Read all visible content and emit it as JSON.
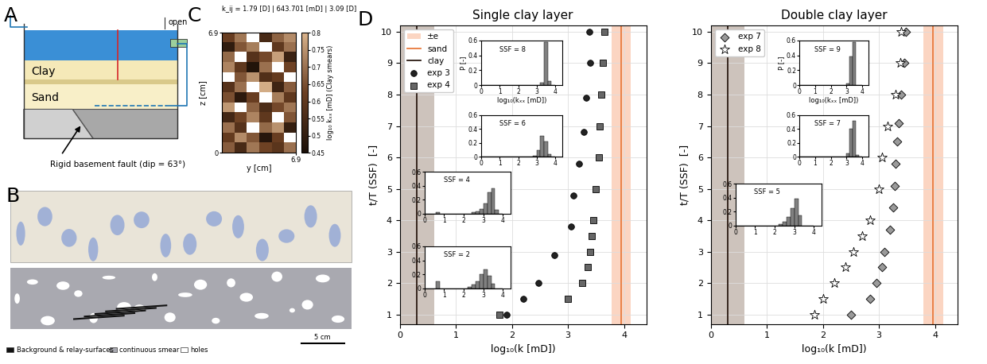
{
  "panel_labels": [
    "A",
    "B",
    "C",
    "D"
  ],
  "diagram_A": {
    "clay": "Clay",
    "sand": "Sand",
    "valve": "open",
    "fault": "Rigid basement fault (dip = 63°)"
  },
  "image_B": {
    "legend": [
      {
        "name": "Background & relay-surfaces",
        "color": "#111111"
      },
      {
        "name": "continuous smear",
        "color": "#a9a9b0"
      },
      {
        "name": "holes",
        "color": "#ffffff"
      }
    ],
    "scale_bar": "5 cm"
  },
  "chart_data": [
    {
      "type": "heatmap",
      "title": "k_ij = 1.79 [D] | 643.701 [mD] | 3.09 [D]",
      "xlabel": "y [cm]",
      "ylabel": "z [cm]",
      "xlim": [
        0,
        6.9
      ],
      "ylim": [
        0,
        6.9
      ],
      "xticks": [
        6.9
      ],
      "yticks": [
        0,
        6.9
      ],
      "cells": [
        [
          0.62,
          0.71,
          null,
          0.55,
          0.68,
          0.74
        ],
        [
          0.5,
          0.66,
          0.72,
          null,
          0.6,
          0.7
        ],
        [
          0.69,
          null,
          0.58,
          0.64,
          0.77,
          0.52
        ],
        [
          0.73,
          0.6,
          0.47,
          0.7,
          null,
          0.63
        ],
        [
          null,
          0.66,
          0.75,
          0.57,
          0.61,
          null
        ],
        [
          0.58,
          0.7,
          null,
          0.79,
          0.53,
          0.67
        ],
        [
          0.65,
          0.49,
          0.62,
          null,
          0.72,
          0.6
        ],
        [
          0.76,
          null,
          0.68,
          0.56,
          0.64,
          0.71
        ],
        [
          0.54,
          0.63,
          0.73,
          0.6,
          null,
          0.66
        ],
        [
          0.7,
          0.58,
          null,
          0.69,
          0.75,
          0.51
        ],
        [
          0.61,
          0.74,
          0.66,
          0.48,
          0.62,
          null
        ],
        [
          0.67,
          0.55,
          0.71,
          0.63,
          0.59,
          0.7
        ]
      ],
      "colorbar": {
        "label": "log₁₀ kₓₓ [mD] (Clay smears)",
        "range": [
          0.45,
          0.8
        ],
        "ticks": [
          0.45,
          0.5,
          0.55,
          0.6,
          0.65,
          0.7,
          0.75,
          0.8
        ]
      }
    },
    {
      "type": "scatter",
      "title": "Single clay layer",
      "xlabel": "log₁₀(k [mD])",
      "ylabel": "t/T (SSF)  [-]",
      "xlim": [
        0,
        4.4
      ],
      "xticks": [
        0,
        1,
        2,
        3,
        4
      ],
      "ylim": [
        0.7,
        10.2
      ],
      "yticks": [
        1,
        2,
        3,
        4,
        5,
        6,
        7,
        8,
        9,
        10
      ],
      "grid": true,
      "legend": "upper left",
      "bands": [
        {
          "name": "±e",
          "color": "#fbd5c2",
          "range": [
            3.78,
            4.12
          ]
        },
        {
          "color": "#cdc3bc",
          "range": [
            0,
            0.62
          ]
        }
      ],
      "lines": [
        {
          "name": "sand",
          "color": "#e87a3c",
          "x": 3.95
        },
        {
          "name": "clay",
          "color": "#2b1a12",
          "x": 0.3
        }
      ],
      "series": [
        {
          "name": "exp 3",
          "color": "#222222",
          "marker": "circle",
          "x": [
            1.9,
            2.2,
            2.48,
            2.75,
            3.05,
            3.1,
            3.2,
            3.28,
            3.33,
            3.4,
            3.38
          ],
          "y": [
            1,
            1.5,
            2,
            2.9,
            3.8,
            4.8,
            5.8,
            6.8,
            7.9,
            9,
            10
          ]
        },
        {
          "name": "exp 4",
          "color": "#666666",
          "marker": "square",
          "x": [
            1.78,
            3.0,
            3.25,
            3.35,
            3.4,
            3.42,
            3.45,
            3.5,
            3.55,
            3.56,
            3.6,
            3.62,
            3.65
          ],
          "y": [
            1,
            1.5,
            2,
            2.5,
            3,
            3.5,
            4,
            5,
            6,
            7,
            8,
            9,
            10
          ]
        }
      ],
      "insets": [
        {
          "type": "histogram",
          "title": "SSF = 8",
          "xlabel": "log₁₀(kₓₓ [mD])",
          "ylabel": "P [-]",
          "color": "#808080",
          "bins": [
            0,
            0.2,
            0.4,
            0.6,
            0.8,
            1,
            1.2,
            1.4,
            1.6,
            1.8,
            2,
            2.2,
            2.4,
            2.6,
            2.8,
            3,
            3.2,
            3.4,
            3.6,
            3.8,
            4
          ],
          "counts": [
            0,
            0,
            0,
            0,
            0,
            0,
            0,
            0,
            0,
            0,
            0,
            0,
            0,
            0,
            0,
            0,
            0.03,
            0.58,
            0.05,
            0
          ],
          "xlim": [
            0,
            4.4
          ],
          "xticks": [
            0,
            1,
            2,
            3,
            4
          ],
          "ylim": [
            0,
            0.6
          ],
          "yticks": [
            0,
            0.2,
            0.4,
            0.6
          ]
        },
        {
          "type": "histogram",
          "title": "SSF = 6",
          "color": "#808080",
          "bins": [
            0,
            0.2,
            0.4,
            0.6,
            0.8,
            1,
            1.2,
            1.4,
            1.6,
            1.8,
            2,
            2.2,
            2.4,
            2.6,
            2.8,
            3,
            3.2,
            3.4,
            3.6,
            3.8,
            4
          ],
          "counts": [
            0,
            0,
            0,
            0,
            0,
            0,
            0,
            0,
            0,
            0,
            0,
            0,
            0,
            0,
            0.02,
            0.1,
            0.3,
            0.22,
            0.04,
            0
          ],
          "xlim": [
            0,
            4.4
          ],
          "xticks": [
            0,
            1,
            2,
            3,
            4
          ],
          "ylim": [
            0,
            0.6
          ],
          "yticks": [
            0,
            0.2,
            0.4,
            0.6
          ]
        },
        {
          "type": "histogram",
          "title": "SSF = 4",
          "color": "#808080",
          "bins": [
            0,
            0.2,
            0.4,
            0.6,
            0.8,
            1,
            1.2,
            1.4,
            1.6,
            1.8,
            2,
            2.2,
            2.4,
            2.6,
            2.8,
            3,
            3.2,
            3.4,
            3.6,
            3.8,
            4
          ],
          "counts": [
            0,
            0,
            0,
            0.02,
            0,
            0,
            0,
            0,
            0,
            0,
            0,
            0,
            0.02,
            0.03,
            0.07,
            0.15,
            0.3,
            0.36,
            0.05,
            0
          ],
          "xlim": [
            0,
            4.4
          ],
          "xticks": [
            0,
            1,
            2,
            3,
            4
          ],
          "ylim": [
            0,
            0.6
          ],
          "yticks": [
            0,
            0.2,
            0.4,
            0.6
          ]
        },
        {
          "type": "histogram",
          "title": "SSF = 2",
          "color": "#808080",
          "bins": [
            0,
            0.2,
            0.4,
            0.6,
            0.8,
            1,
            1.2,
            1.4,
            1.6,
            1.8,
            2,
            2.2,
            2.4,
            2.6,
            2.8,
            3,
            3.2,
            3.4,
            3.6,
            3.8,
            4
          ],
          "counts": [
            0,
            0,
            0,
            0.1,
            0,
            0,
            0,
            0,
            0,
            0,
            0,
            0.02,
            0.05,
            0.1,
            0.2,
            0.27,
            0.18,
            0.06,
            0,
            0
          ],
          "xlim": [
            0,
            4.4
          ],
          "xticks": [
            0,
            1,
            2,
            3,
            4
          ],
          "ylim": [
            0,
            0.6
          ],
          "yticks": [
            0,
            0.2,
            0.4,
            0.6
          ]
        }
      ]
    },
    {
      "type": "scatter",
      "title": "Double clay layer",
      "xlabel": "log₁₀(k [mD])",
      "ylabel": "t/T (SSF)  [-]",
      "xlim": [
        0,
        4.4
      ],
      "xticks": [
        0,
        1,
        2,
        3,
        4
      ],
      "ylim": [
        0.7,
        10.2
      ],
      "yticks": [
        1,
        2,
        3,
        4,
        5,
        6,
        7,
        8,
        9,
        10
      ],
      "grid": true,
      "legend": "upper left",
      "bands": [
        {
          "color": "#fbd5c2",
          "range": [
            3.8,
            4.15
          ]
        },
        {
          "color": "#cdc3bc",
          "range": [
            0,
            0.6
          ]
        }
      ],
      "lines": [
        {
          "color": "#e87a3c",
          "x": 3.97
        },
        {
          "color": "#2b1a12",
          "x": 0.3
        }
      ],
      "series": [
        {
          "name": "exp 7",
          "color": "#9a9a9a",
          "marker": "diamond",
          "x": [
            2.5,
            2.85,
            2.95,
            3.05,
            3.1,
            3.2,
            3.25,
            3.28,
            3.3,
            3.33,
            3.35,
            3.4,
            3.45,
            3.48
          ],
          "y": [
            1,
            1.5,
            2,
            2.5,
            3,
            3.7,
            4.4,
            5.1,
            5.8,
            6.5,
            7.1,
            8,
            9,
            10
          ]
        },
        {
          "name": "exp 8",
          "color": "#ffffff",
          "marker": "star",
          "x": [
            1.85,
            2.0,
            2.2,
            2.4,
            2.55,
            2.7,
            2.85,
            3.0,
            3.05,
            3.15,
            3.3,
            3.38,
            3.4
          ],
          "y": [
            1,
            1.5,
            2,
            2.5,
            3,
            3.5,
            4,
            5,
            6,
            7,
            8,
            9,
            10
          ]
        }
      ],
      "insets": [
        {
          "type": "histogram",
          "title": "SSF = 9",
          "xlabel": "log₁₀(kₓₓ [mD])",
          "ylabel": "P [-]",
          "color": "#808080",
          "bins": [
            0,
            0.2,
            0.4,
            0.6,
            0.8,
            1,
            1.2,
            1.4,
            1.6,
            1.8,
            2,
            2.2,
            2.4,
            2.6,
            2.8,
            3,
            3.2,
            3.4,
            3.6,
            3.8,
            4
          ],
          "counts": [
            0,
            0,
            0,
            0,
            0,
            0,
            0,
            0,
            0,
            0,
            0,
            0,
            0,
            0,
            0,
            0.02,
            0.38,
            0.58,
            0,
            0
          ],
          "xlim": [
            0,
            4.4
          ],
          "xticks": [
            0,
            1,
            2,
            3,
            4
          ],
          "ylim": [
            0,
            0.6
          ],
          "yticks": [
            0,
            0.2,
            0.4,
            0.6
          ]
        },
        {
          "type": "histogram",
          "title": "SSF = 7",
          "color": "#808080",
          "bins": [
            0,
            0.2,
            0.4,
            0.6,
            0.8,
            1,
            1.2,
            1.4,
            1.6,
            1.8,
            2,
            2.2,
            2.4,
            2.6,
            2.8,
            3,
            3.2,
            3.4,
            3.6,
            3.8,
            4
          ],
          "counts": [
            0,
            0,
            0,
            0,
            0,
            0,
            0,
            0,
            0,
            0,
            0,
            0,
            0,
            0,
            0,
            0.05,
            0.4,
            0.52,
            0.03,
            0
          ],
          "xlim": [
            0,
            4.4
          ],
          "xticks": [
            0,
            1,
            2,
            3,
            4
          ],
          "ylim": [
            0,
            0.6
          ],
          "yticks": [
            0,
            0.2,
            0.4,
            0.6
          ]
        },
        {
          "type": "histogram",
          "title": "SSF = 5",
          "color": "#808080",
          "bins": [
            0,
            0.2,
            0.4,
            0.6,
            0.8,
            1,
            1.2,
            1.4,
            1.6,
            1.8,
            2,
            2.2,
            2.4,
            2.6,
            2.8,
            3,
            3.2,
            3.4,
            3.6,
            3.8,
            4
          ],
          "counts": [
            0,
            0,
            0,
            0,
            0,
            0,
            0,
            0,
            0,
            0,
            0,
            0.02,
            0.05,
            0.12,
            0.25,
            0.38,
            0.15,
            0,
            0,
            0
          ],
          "xlim": [
            0,
            4.4
          ],
          "xticks": [
            0,
            1,
            2,
            3,
            4
          ],
          "ylim": [
            0,
            0.6
          ],
          "yticks": [
            0,
            0.2,
            0.4,
            0.6
          ]
        }
      ]
    }
  ]
}
